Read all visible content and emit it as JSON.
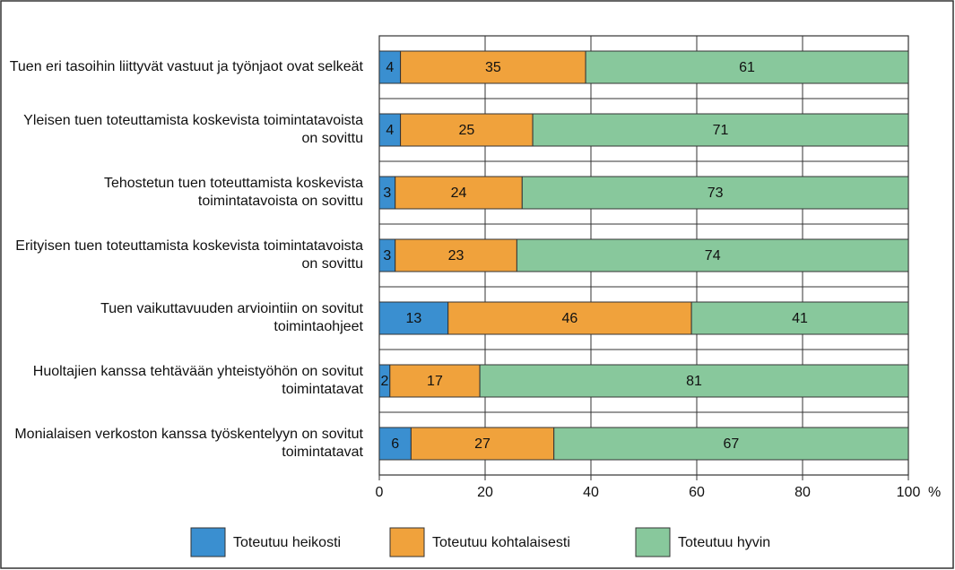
{
  "chart_data": {
    "type": "stacked_bar_horizontal",
    "categories": [
      "Tuen eri tasoihin liittyvät vastuut ja työnjaot ovat selkeät",
      "Yleisen tuen toteuttamista koskevista toimintatavoista on sovittu",
      "Tehostetun tuen toteuttamista koskevista toimintatavoista on sovittu",
      "Erityisen tuen toteuttamista koskevista toimintatavoista on sovittu",
      "Tuen vaikuttavuuden arviointiin on sovitut toimintaohjeet",
      "Huoltajien kanssa tehtävään yhteistyöhön on sovitut toimintatavat",
      "Monialaisen verkoston kanssa työskentelyyn on sovitut toimintatavat"
    ],
    "series": [
      {
        "name": "Toteutuu heikosti",
        "color": "#3a8fd0",
        "values": [
          4,
          4,
          3,
          3,
          13,
          2,
          6
        ]
      },
      {
        "name": "Toteutuu kohtalaisesti",
        "color": "#f0a23c",
        "values": [
          35,
          25,
          24,
          23,
          46,
          17,
          27
        ]
      },
      {
        "name": "Toteutuu hyvin",
        "color": "#88c89c",
        "values": [
          61,
          71,
          73,
          74,
          41,
          81,
          67
        ]
      }
    ],
    "xlim": [
      0,
      100
    ],
    "xticks": [
      0,
      20,
      40,
      60,
      80,
      100
    ],
    "xlabel": "%",
    "grid": true,
    "legend": "bottom"
  }
}
